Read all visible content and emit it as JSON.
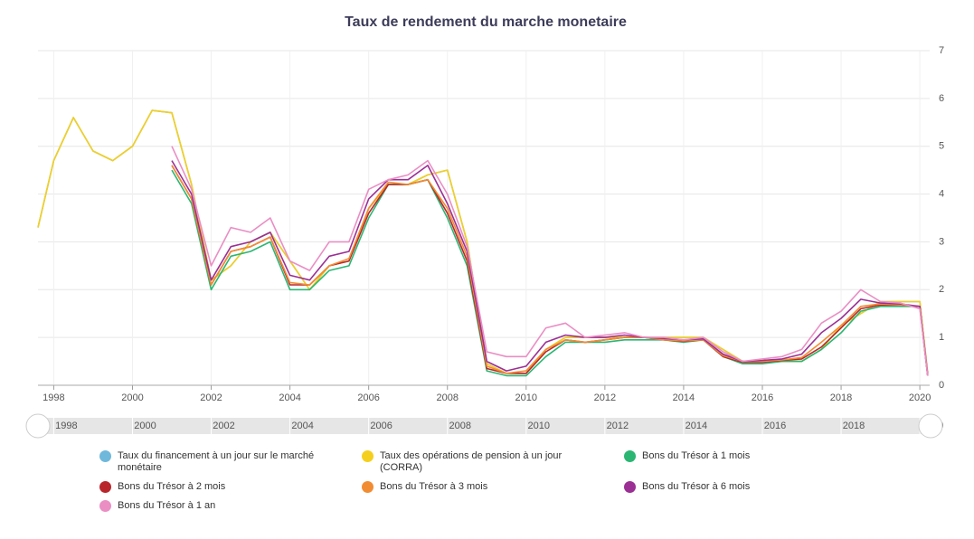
{
  "chart_data": {
    "type": "line",
    "title": "Taux de rendement du marche monetaire",
    "x": [
      1997.6,
      1998,
      1998.5,
      1999,
      1999.5,
      2000,
      2000.5,
      2001,
      2001.5,
      2002,
      2002.5,
      2003,
      2003.5,
      2004,
      2004.5,
      2005,
      2005.5,
      2006,
      2006.5,
      2007,
      2007.5,
      2008,
      2008.5,
      2009,
      2009.5,
      2010,
      2010.5,
      2011,
      2011.5,
      2012,
      2012.5,
      2013,
      2013.5,
      2014,
      2014.5,
      2015,
      2015.5,
      2016,
      2016.5,
      2017,
      2017.5,
      2018,
      2018.5,
      2019,
      2019.5,
      2020,
      2020.2
    ],
    "xlim": [
      1997.6,
      2020.25
    ],
    "xticks": [
      1998,
      2000,
      2002,
      2004,
      2006,
      2008,
      2010,
      2012,
      2014,
      2016,
      2018,
      2020
    ],
    "ylim": [
      0,
      7
    ],
    "yticks": [
      0,
      1,
      2,
      3,
      4,
      5,
      6,
      7
    ],
    "grid": true,
    "series": [
      {
        "name": "Taux du financement à un jour sur le marché monétaire",
        "color": "#6fb8dc",
        "values": [
          3.3,
          4.7,
          5.6,
          4.9,
          4.7,
          5.0,
          5.75,
          5.7,
          4.2,
          2.2,
          2.5,
          3.0,
          3.2,
          2.6,
          2.0,
          2.5,
          2.6,
          3.7,
          4.2,
          4.2,
          4.4,
          4.5,
          3.0,
          0.45,
          0.25,
          0.25,
          0.75,
          1.0,
          1.0,
          1.0,
          1.0,
          1.0,
          1.0,
          1.0,
          1.0,
          0.75,
          0.5,
          0.5,
          0.5,
          0.5,
          0.75,
          1.25,
          1.5,
          1.75,
          1.75,
          1.75,
          0.25
        ]
      },
      {
        "name": "Taux des opérations de pension à un jour (CORRA)",
        "color": "#f5cf1d",
        "values": [
          3.3,
          4.7,
          5.6,
          4.9,
          4.7,
          5.0,
          5.75,
          5.7,
          4.2,
          2.2,
          2.5,
          3.0,
          3.2,
          2.6,
          2.0,
          2.5,
          2.6,
          3.7,
          4.2,
          4.2,
          4.4,
          4.5,
          3.0,
          0.45,
          0.25,
          0.25,
          0.75,
          1.0,
          1.0,
          1.0,
          1.0,
          1.0,
          1.0,
          1.0,
          1.0,
          0.75,
          0.5,
          0.5,
          0.5,
          0.5,
          0.75,
          1.25,
          1.5,
          1.75,
          1.75,
          1.75,
          0.25
        ]
      },
      {
        "name": "Bons du Trésor à 1 mois",
        "color": "#2bb673",
        "values": [
          null,
          null,
          null,
          null,
          null,
          null,
          null,
          4.5,
          3.8,
          2.0,
          2.7,
          2.8,
          3.0,
          2.0,
          2.0,
          2.4,
          2.5,
          3.5,
          4.2,
          4.2,
          4.3,
          3.5,
          2.5,
          0.3,
          0.2,
          0.2,
          0.6,
          0.9,
          0.9,
          0.9,
          0.95,
          0.95,
          0.95,
          0.9,
          0.95,
          0.6,
          0.45,
          0.45,
          0.5,
          0.5,
          0.75,
          1.1,
          1.55,
          1.65,
          1.65,
          1.65,
          0.2
        ]
      },
      {
        "name": "Bons du Trésor à 2 mois",
        "color": "#b8262c",
        "values": [
          null,
          null,
          null,
          null,
          null,
          null,
          null,
          4.6,
          3.9,
          2.1,
          2.8,
          2.9,
          3.1,
          2.1,
          2.1,
          2.5,
          2.6,
          3.6,
          4.2,
          4.2,
          4.3,
          3.6,
          2.6,
          0.35,
          0.25,
          0.25,
          0.7,
          0.95,
          0.9,
          0.95,
          1.0,
          1.0,
          0.95,
          0.92,
          0.95,
          0.6,
          0.48,
          0.48,
          0.52,
          0.55,
          0.8,
          1.2,
          1.6,
          1.68,
          1.68,
          1.65,
          0.22
        ]
      },
      {
        "name": "Bons du Trésor à 3 mois",
        "color": "#f28c33",
        "values": [
          null,
          null,
          null,
          null,
          null,
          null,
          null,
          4.6,
          3.9,
          2.1,
          2.8,
          2.9,
          3.1,
          2.15,
          2.1,
          2.5,
          2.65,
          3.7,
          4.25,
          4.2,
          4.3,
          3.7,
          2.7,
          0.4,
          0.25,
          0.3,
          0.75,
          0.95,
          0.9,
          0.95,
          1.0,
          1.0,
          0.95,
          0.93,
          0.95,
          0.62,
          0.5,
          0.5,
          0.53,
          0.58,
          0.9,
          1.25,
          1.65,
          1.7,
          1.68,
          1.65,
          0.2
        ]
      },
      {
        "name": "Bons du Trésor à 6 mois",
        "color": "#9b2f94",
        "values": [
          null,
          null,
          null,
          null,
          null,
          null,
          null,
          4.7,
          4.0,
          2.2,
          2.9,
          3.0,
          3.2,
          2.3,
          2.2,
          2.7,
          2.8,
          3.9,
          4.3,
          4.3,
          4.6,
          3.8,
          2.8,
          0.5,
          0.3,
          0.4,
          0.9,
          1.05,
          1.0,
          1.0,
          1.05,
          1.0,
          0.98,
          0.95,
          0.97,
          0.65,
          0.5,
          0.52,
          0.55,
          0.65,
          1.1,
          1.4,
          1.8,
          1.72,
          1.7,
          1.65,
          0.2
        ]
      },
      {
        "name": "Bons du Trésor à 1 an",
        "color": "#ea8ec4",
        "values": [
          null,
          null,
          null,
          null,
          null,
          null,
          null,
          5.0,
          4.1,
          2.5,
          3.3,
          3.2,
          3.5,
          2.6,
          2.4,
          3.0,
          3.0,
          4.1,
          4.3,
          4.4,
          4.7,
          4.0,
          2.9,
          0.7,
          0.6,
          0.6,
          1.2,
          1.3,
          1.0,
          1.05,
          1.1,
          1.0,
          1.0,
          0.95,
          1.0,
          0.7,
          0.5,
          0.55,
          0.6,
          0.75,
          1.3,
          1.55,
          2.0,
          1.75,
          1.72,
          1.6,
          0.2
        ]
      }
    ]
  }
}
